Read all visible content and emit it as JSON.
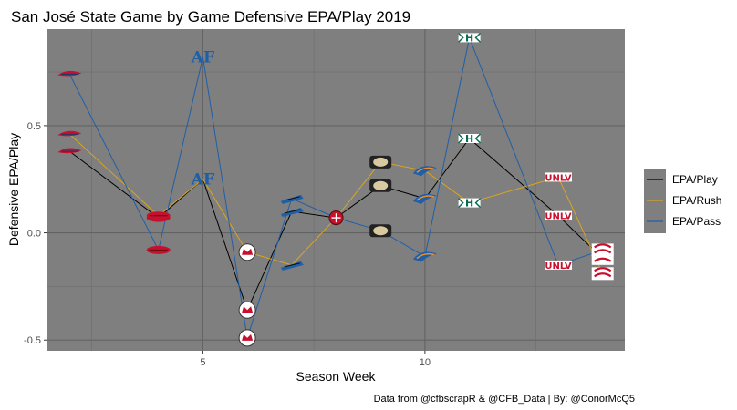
{
  "chart_data": {
    "type": "line",
    "title": "San José State Game by Game Defensive EPA/Play 2019",
    "xlabel": "Season Week",
    "ylabel": "Defensive EPA/Play",
    "xlim": [
      1.5,
      14.5
    ],
    "ylim": [
      -0.55,
      0.95
    ],
    "x_ticks": [
      5,
      10
    ],
    "y_ticks": [
      -0.5,
      0.0,
      0.5
    ],
    "y_tick_labels": [
      "-0.5",
      "0.0",
      "0.5"
    ],
    "grid": true,
    "panel_color": "#7f7f7f",
    "legend_position": "right",
    "x": [
      2,
      4,
      5,
      6,
      7,
      8,
      9,
      10,
      11,
      13,
      14
    ],
    "series": [
      {
        "name": "EPA/Play",
        "color": "#000000",
        "values": [
          0.38,
          0.07,
          0.25,
          -0.36,
          0.1,
          0.07,
          0.22,
          0.16,
          0.44,
          0.08,
          -0.12
        ]
      },
      {
        "name": "EPA/Rush",
        "color": "#daa520",
        "values": [
          0.46,
          0.08,
          0.25,
          -0.09,
          -0.15,
          0.07,
          0.33,
          0.29,
          0.14,
          0.26,
          -0.19
        ]
      },
      {
        "name": "EPA/Pass",
        "color": "#1f5fa8",
        "values": [
          0.74,
          -0.08,
          0.82,
          -0.49,
          0.16,
          0.07,
          0.01,
          -0.11,
          0.91,
          -0.15,
          -0.08
        ]
      }
    ],
    "opponent_logos": [
      {
        "x": 2,
        "logo": "fresno-state-logo",
        "color": "#c8102e"
      },
      {
        "x": 4,
        "logo": "arkansas-logo",
        "color": "#c8102e"
      },
      {
        "x": 5,
        "logo": "air-force-logo",
        "text": "AF",
        "color": "#1f5fa8"
      },
      {
        "x": 6,
        "logo": "new-mexico-logo",
        "color": "#c8102e"
      },
      {
        "x": 7,
        "logo": "san-diego-state-logo",
        "color": "#1f5fa8"
      },
      {
        "x": 8,
        "logo": "fresno-red-logo",
        "color": "#c8102e"
      },
      {
        "x": 9,
        "logo": "army-logo",
        "color": "#222222"
      },
      {
        "x": 10,
        "logo": "boise-state-logo",
        "color": "#1f5fa8"
      },
      {
        "x": 11,
        "logo": "hawaii-logo",
        "text": "H",
        "color": "#0a6b4f"
      },
      {
        "x": 13,
        "logo": "unlv-logo",
        "text": "UNLV",
        "color": "#c8102e"
      },
      {
        "x": 14,
        "logo": "stanford-logo",
        "color": "#c8102e"
      }
    ],
    "caption": "Data from @cfbscrapR & @CFB_Data | By: @ConorMcQ5"
  }
}
